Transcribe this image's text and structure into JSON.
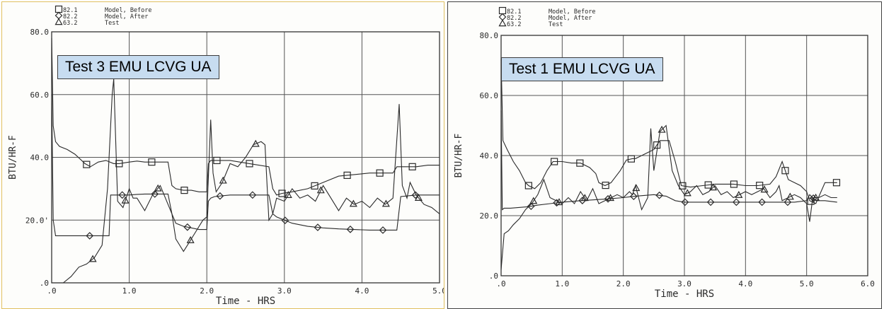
{
  "chart_data": [
    {
      "type": "line",
      "overlay_label": "Test 3 EMU LCVG UA",
      "xlabel": "Time - HRS",
      "ylabel": "BTU/HR-F",
      "xlim": [
        0,
        5
      ],
      "ylim": [
        0,
        80
      ],
      "x_ticks": [
        ".0",
        "1.0",
        "2.0",
        "3.0",
        "4.0",
        "5.0"
      ],
      "y_ticks": [
        ".0",
        "20.0'",
        "40.0",
        "60.0",
        "80.0"
      ],
      "grid": true,
      "legend_position": "top-left",
      "series": [
        {
          "name": "Model, Before",
          "legend_code": "82.1",
          "marker": "square",
          "x": [
            0,
            0.02,
            0.05,
            0.1,
            0.2,
            0.3,
            0.43,
            0.5,
            0.6,
            0.7,
            0.8,
            0.87,
            1.0,
            1.1,
            1.2,
            1.3,
            1.5,
            1.55,
            1.6,
            1.7,
            1.8,
            1.9,
            2.0,
            2.02,
            2.05,
            2.1,
            2.3,
            2.55,
            2.8,
            2.85,
            2.9,
            2.97,
            3.1,
            3.3,
            3.5,
            3.7,
            3.9,
            4.1,
            4.2,
            4.4,
            4.45,
            4.55,
            4.7,
            4.85,
            5.0
          ],
          "y": [
            78,
            50,
            45,
            43.5,
            42.5,
            41,
            38,
            37,
            38.5,
            39,
            38,
            38,
            38.5,
            38.8,
            38.5,
            38.5,
            38.5,
            31,
            30,
            29.5,
            29.5,
            29,
            29,
            38,
            39,
            39,
            39,
            38,
            37,
            30,
            28,
            28.5,
            29,
            30,
            32,
            34,
            34.5,
            35,
            35,
            35,
            37,
            37,
            37,
            37.5,
            37.5
          ]
        },
        {
          "name": "Model, After",
          "legend_code": "82.2",
          "marker": "diamond",
          "x": [
            0,
            0.02,
            0.05,
            0.2,
            0.43,
            0.6,
            0.74,
            0.76,
            0.8,
            0.87,
            1.0,
            1.1,
            1.2,
            1.3,
            1.5,
            1.55,
            1.6,
            1.7,
            1.8,
            1.9,
            2.0,
            2.02,
            2.05,
            2.1,
            2.3,
            2.55,
            2.8,
            2.85,
            2.9,
            3.0,
            3.1,
            3.3,
            3.5,
            3.7,
            3.9,
            4.1,
            4.3,
            4.45,
            4.5,
            4.7,
            4.85,
            5.0
          ],
          "y": [
            60,
            20,
            15,
            15,
            15,
            15,
            15,
            28,
            28,
            28,
            28,
            28.2,
            28.3,
            28.3,
            28.3,
            22,
            19,
            18,
            17.5,
            17,
            17,
            26,
            27,
            27.5,
            28,
            28,
            28,
            22,
            21,
            20,
            19,
            18,
            17.5,
            17.2,
            17,
            16.8,
            16.8,
            16.8,
            27.5,
            28,
            28,
            28
          ]
        },
        {
          "name": "Test",
          "legend_code": "63.2",
          "marker": "triangle",
          "x": [
            0,
            0.05,
            0.15,
            0.25,
            0.35,
            0.45,
            0.55,
            0.65,
            0.72,
            0.78,
            0.8,
            0.85,
            0.92,
            1.0,
            1.05,
            1.1,
            1.2,
            1.3,
            1.4,
            1.5,
            1.55,
            1.6,
            1.7,
            1.75,
            1.85,
            1.95,
            2.0,
            2.05,
            2.08,
            2.12,
            2.2,
            2.3,
            2.4,
            2.5,
            2.6,
            2.7,
            2.75,
            2.8,
            2.85,
            2.9,
            3.0,
            3.1,
            3.2,
            3.3,
            3.4,
            3.5,
            3.6,
            3.7,
            3.8,
            3.9,
            4.0,
            4.1,
            4.2,
            4.3,
            4.4,
            4.48,
            4.52,
            4.58,
            4.62,
            4.7,
            4.8,
            4.9,
            5.0
          ],
          "y": [
            0,
            0,
            0,
            2,
            5,
            6,
            8,
            12,
            30,
            60,
            65,
            26,
            24,
            30,
            27,
            27,
            23,
            28,
            31,
            25,
            22,
            14,
            10,
            12,
            16,
            20,
            21,
            52,
            35,
            29,
            32,
            38,
            37,
            40,
            44,
            45,
            44,
            20,
            22,
            27,
            26,
            30,
            27,
            28,
            26,
            31,
            27,
            23,
            27,
            25,
            26,
            24,
            27,
            25,
            27,
            57,
            31,
            27,
            32,
            28,
            25,
            24,
            22
          ]
        }
      ]
    },
    {
      "type": "line",
      "overlay_label": "Test 1 EMU LCVG UA",
      "xlabel": "Time - HRS",
      "ylabel": "BTU/HR-F",
      "xlim": [
        0,
        6
      ],
      "ylim": [
        0,
        80
      ],
      "x_ticks": [
        ".0",
        "1.0",
        "2.0",
        "3.0",
        "4.0",
        "5.0",
        "6.0"
      ],
      "y_ticks": [
        ".0",
        "20.0",
        "40.0",
        "60.0",
        "80.0"
      ],
      "grid": true,
      "legend_position": "top-left",
      "series": [
        {
          "name": "Model, Before",
          "legend_code": "82.1",
          "marker": "square",
          "x": [
            0,
            0.03,
            0.1,
            0.2,
            0.3,
            0.4,
            0.45,
            0.55,
            0.65,
            0.75,
            0.85,
            1.0,
            1.15,
            1.3,
            1.45,
            1.55,
            1.6,
            1.7,
            1.8,
            1.95,
            2.05,
            2.15,
            2.2,
            2.3,
            2.4,
            2.5,
            2.55,
            2.6,
            2.75,
            2.85,
            2.95,
            3.1,
            3.3,
            3.5,
            3.8,
            4.0,
            4.2,
            4.4,
            4.5,
            4.6,
            4.7,
            4.9,
            5.0,
            5.05,
            5.15,
            5.3,
            5.5
          ],
          "y": [
            72,
            45,
            42,
            38,
            35,
            31,
            30,
            29,
            31,
            35,
            38,
            38,
            37.5,
            37.5,
            36,
            34,
            31,
            30,
            31,
            35,
            38.5,
            39,
            39,
            40,
            41,
            42,
            43.5,
            45,
            45,
            38,
            30,
            29.5,
            30,
            30.5,
            30.5,
            30,
            30,
            30.5,
            33,
            38,
            32,
            30,
            28,
            25,
            24,
            31,
            31
          ]
        },
        {
          "name": "Model, After",
          "legend_code": "82.2",
          "marker": "diamond",
          "x": [
            0,
            0.02,
            0.05,
            0.15,
            0.45,
            0.6,
            0.8,
            1.0,
            1.3,
            1.7,
            2.0,
            2.2,
            2.5,
            2.7,
            2.85,
            3.0,
            3.4,
            3.8,
            4.2,
            4.5,
            4.8,
            5.0,
            5.05,
            5.15,
            5.3,
            5.5
          ],
          "y": [
            55,
            22,
            22.5,
            22.5,
            23,
            23.5,
            24,
            24.5,
            25,
            25.5,
            26,
            26.5,
            27,
            26.5,
            25,
            24.5,
            24.5,
            24.5,
            24.5,
            24.5,
            24.5,
            25,
            27,
            25,
            25,
            24.5
          ]
        },
        {
          "name": "Test",
          "legend_code": "63.2",
          "marker": "triangle",
          "x": [
            0,
            0.05,
            0.12,
            0.2,
            0.3,
            0.4,
            0.5,
            0.6,
            0.7,
            0.8,
            0.9,
            1.0,
            1.1,
            1.2,
            1.3,
            1.4,
            1.5,
            1.6,
            1.7,
            1.8,
            1.9,
            2.0,
            2.1,
            2.15,
            2.2,
            2.3,
            2.4,
            2.45,
            2.5,
            2.6,
            2.7,
            2.8,
            2.9,
            3.0,
            3.1,
            3.2,
            3.3,
            3.4,
            3.5,
            3.6,
            3.7,
            3.8,
            3.9,
            4.0,
            4.1,
            4.2,
            4.3,
            4.4,
            4.5,
            4.55,
            4.6,
            4.7,
            4.8,
            4.9,
            5.0,
            5.05,
            5.1,
            5.2,
            5.3,
            5.4,
            5.5
          ],
          "y": [
            2,
            14,
            15,
            17,
            19,
            22,
            24,
            27,
            32,
            26,
            25,
            24,
            26,
            24,
            28,
            25,
            29,
            24,
            25,
            26,
            27,
            26,
            28,
            27,
            30,
            22,
            26,
            49,
            35,
            48,
            50,
            35,
            30,
            27,
            28,
            30,
            27,
            28,
            30,
            27,
            28,
            26,
            27,
            28,
            27,
            28,
            29,
            26,
            28,
            30,
            25,
            26,
            27,
            26,
            24,
            18,
            26,
            26,
            27,
            26,
            26
          ]
        }
      ]
    }
  ]
}
